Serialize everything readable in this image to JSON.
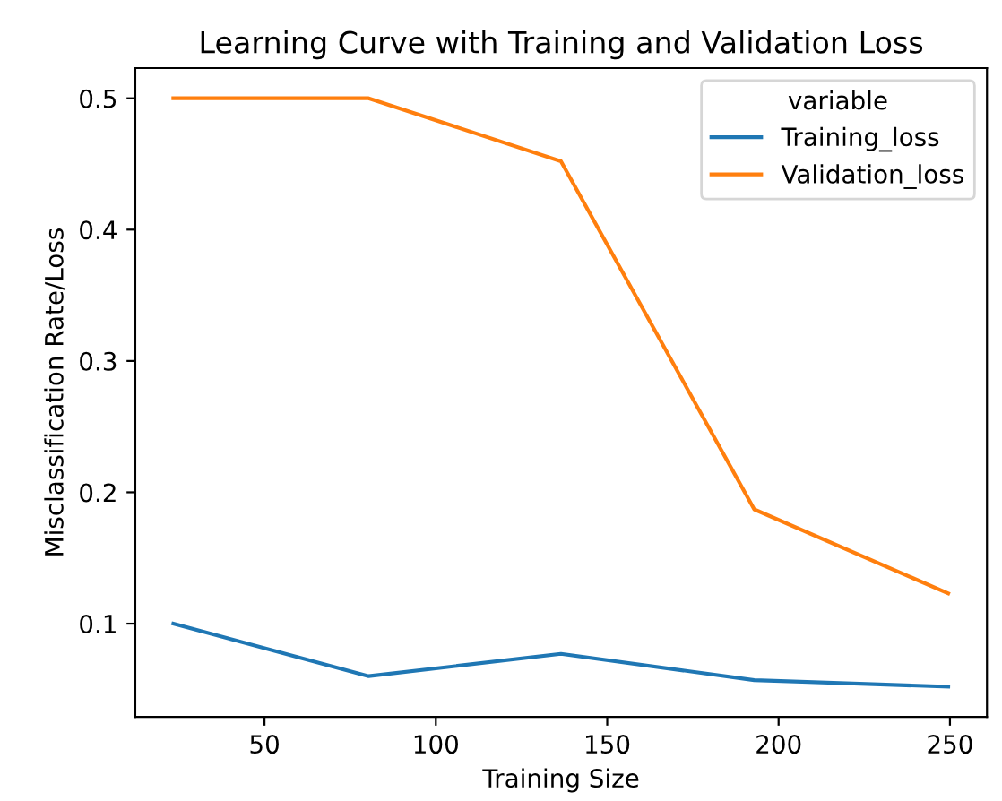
{
  "chart_data": {
    "type": "line",
    "title": "Learning Curve with Training and Validation Loss",
    "xlabel": "Training Size",
    "ylabel": "Misclassification Rate/Loss",
    "legend_title": "variable",
    "x": [
      23.4,
      80.4,
      136.5,
      192.9,
      249.5
    ],
    "series": [
      {
        "name": "Training_loss",
        "color": "#1f77b4",
        "values": [
          0.1,
          0.06,
          0.077,
          0.057,
          0.052
        ]
      },
      {
        "name": "Validation_loss",
        "color": "#ff7f0e",
        "values": [
          0.5,
          0.5,
          0.452,
          0.187,
          0.123
        ]
      }
    ],
    "xlim": [
      12.3,
      260.8
    ],
    "ylim": [
      0.029,
      0.523
    ],
    "xticks": [
      50,
      100,
      150,
      200,
      250
    ],
    "yticks": [
      0.1,
      0.2,
      0.3,
      0.4,
      0.5
    ],
    "grid": false,
    "legend": "top right",
    "marker": "none",
    "line_style": "solid"
  }
}
